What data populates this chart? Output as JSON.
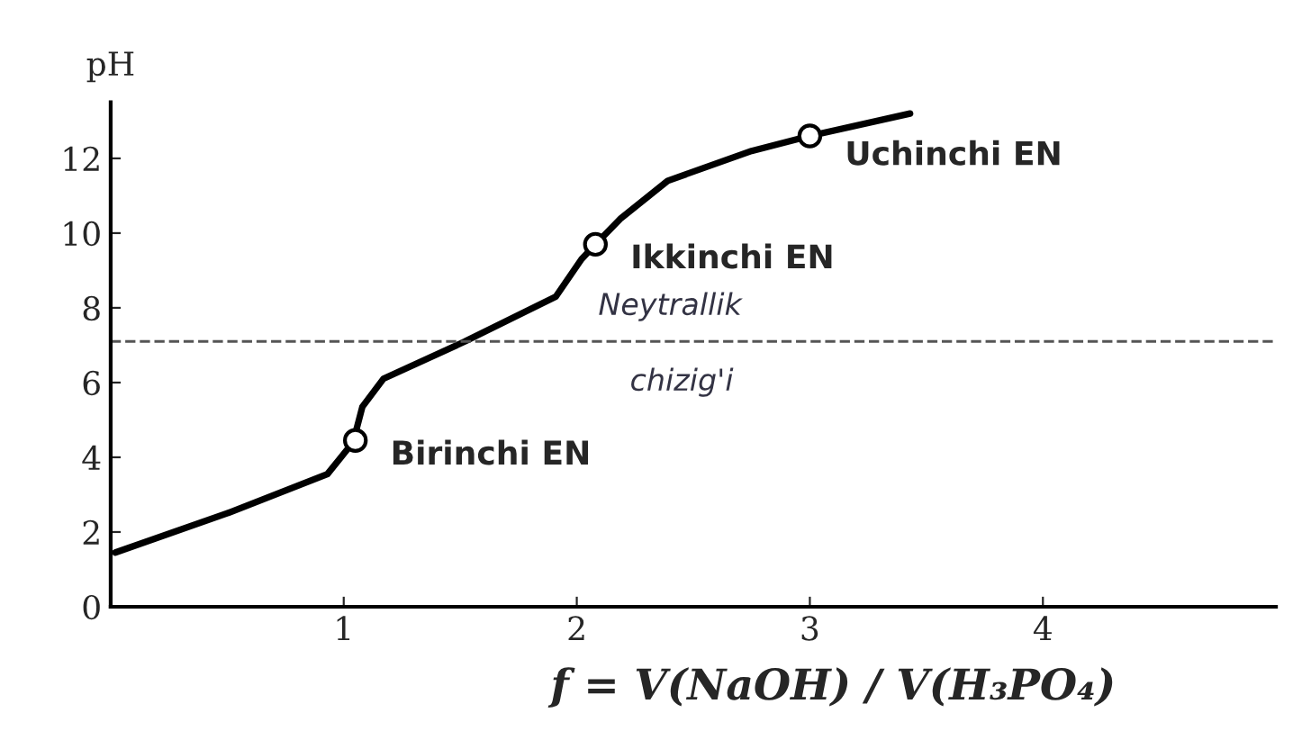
{
  "chart_data": {
    "type": "line",
    "xlabel": "f = V(NaOH) / V(H₃PO₄)",
    "ylabel": "pH",
    "xlim": [
      0,
      5
    ],
    "ylim": [
      0,
      13.5
    ],
    "xticks": [
      1,
      2,
      3,
      4
    ],
    "yticks": [
      0,
      2,
      4,
      6,
      8,
      10,
      12
    ],
    "grid": false,
    "legend": false,
    "series": [
      {
        "color": "#000000",
        "marker": "none",
        "x": [
          0.02,
          0.5,
          0.93,
          1.04,
          1.08,
          1.17,
          1.52,
          1.91,
          2.02,
          2.08,
          2.19,
          2.39,
          2.75,
          3.0,
          3.43
        ],
        "values": [
          1.45,
          2.5,
          3.55,
          4.4,
          5.35,
          6.1,
          7.1,
          8.3,
          9.3,
          9.7,
          10.4,
          11.4,
          12.2,
          12.6,
          13.2
        ]
      },
      {
        "type": "scatter",
        "color": "#000000",
        "marker": "circle",
        "x": [
          1.05,
          2.08,
          3.0
        ],
        "values": [
          4.45,
          9.7,
          12.6
        ]
      }
    ],
    "ref_lines": [
      {
        "axis": "y",
        "value": 7.1,
        "line_style": "dashed",
        "color": "#555555"
      }
    ],
    "annotations": [
      {
        "text": "Birinchi EN",
        "x": 1.05,
        "y": 4.45
      },
      {
        "text": "Ikkinchi EN",
        "x": 2.08,
        "y": 9.7
      },
      {
        "text": "Uchinchi EN",
        "x": 3.0,
        "y": 12.6
      },
      "Neytrallik",
      "chizig'i"
    ]
  }
}
